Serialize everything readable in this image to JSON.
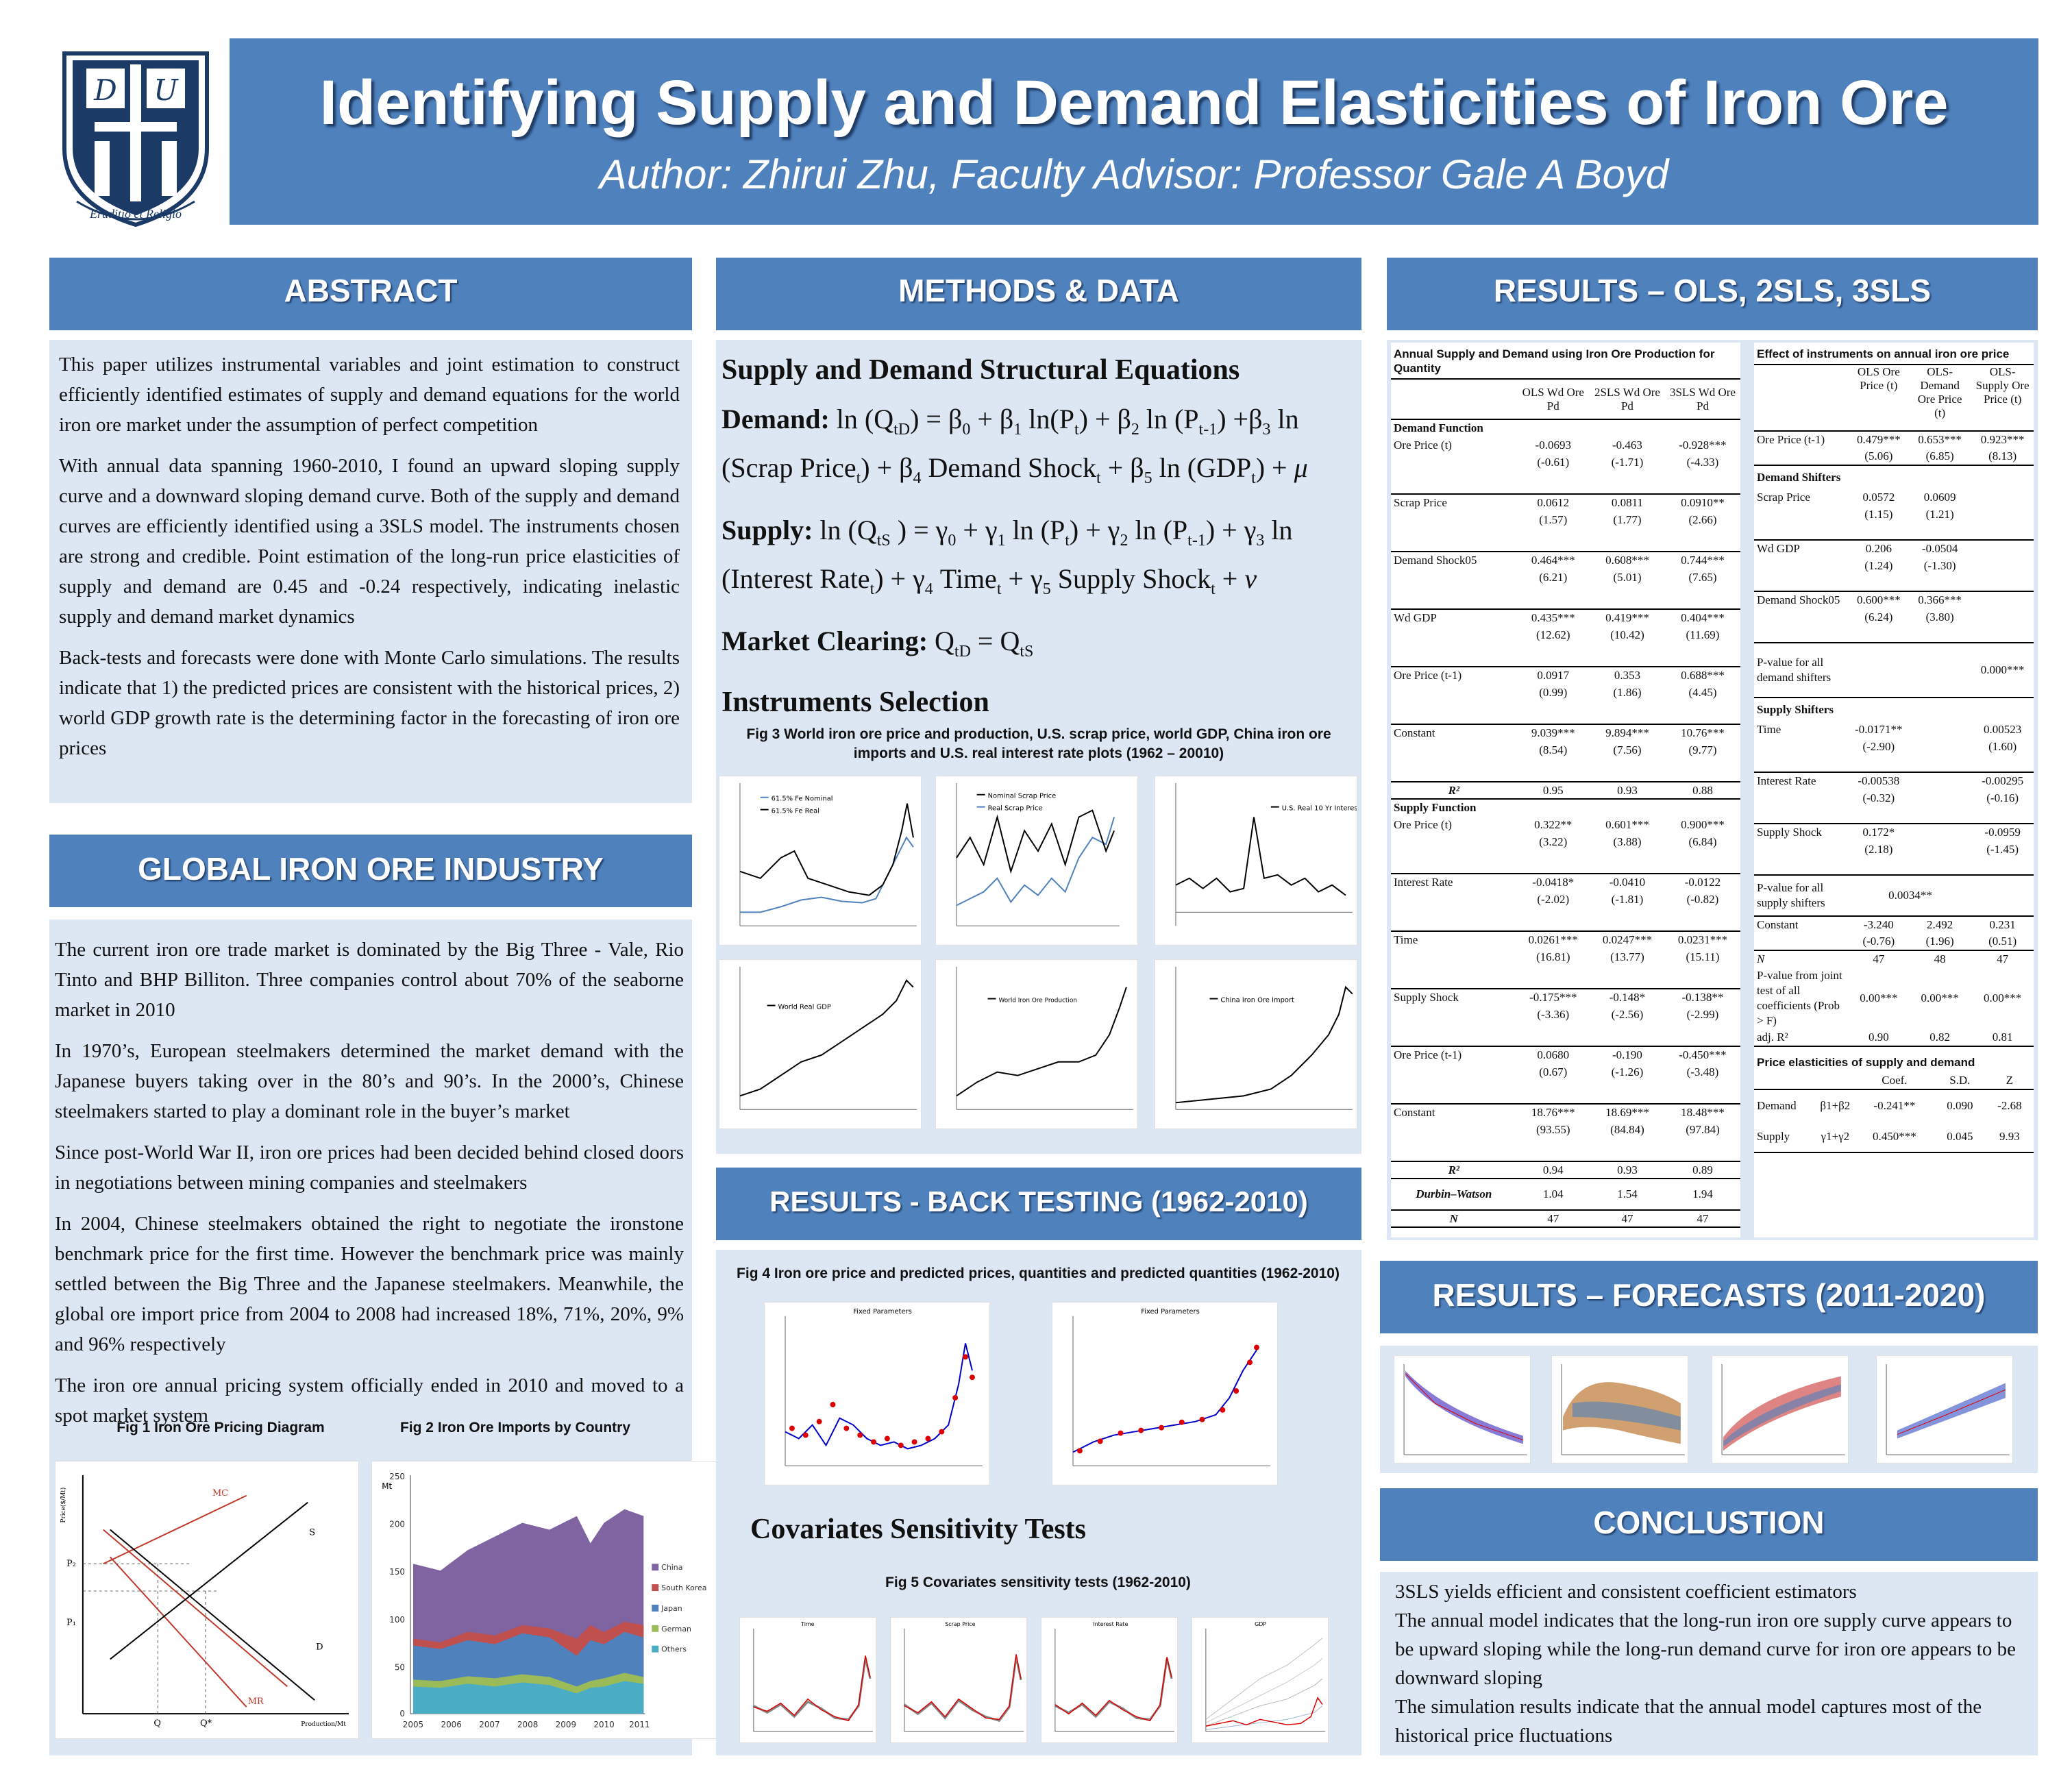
{
  "header": {
    "title": "Identifying Supply and Demand Elasticities of Iron Ore",
    "author": "Author: Zhirui Zhu, Faculty Advisor: Professor Gale A Boyd",
    "logo_motto": "Eruditio et Religio"
  },
  "abstract": {
    "heading": "ABSTRACT",
    "paragraphs": [
      "This paper utilizes instrumental variables and joint estimation to construct efficiently identified estimates of supply and demand equations for the world iron ore market under the assumption of perfect competition",
      "With annual data spanning 1960-2010, I found an upward sloping supply curve and a downward sloping demand curve. Both of the supply and demand curves are efficiently identified using a 3SLS model. The instruments chosen are strong and credible. Point estimation of the long-run price elasticities of supply and demand are 0.45 and -0.24 respectively, indicating inelastic supply and demand market dynamics",
      "Back-tests and forecasts were done with Monte Carlo simulations. The results indicate that 1) the predicted prices are consistent with the historical prices, 2) world GDP growth rate is the determining factor in the forecasting of iron ore prices"
    ]
  },
  "industry": {
    "heading": "GLOBAL IRON ORE INDUSTRY",
    "paragraphs": [
      "The current iron ore trade market is dominated by the Big Three - Vale, Rio Tinto and BHP Billiton. Three companies control about 70% of the seaborne market in 2010",
      "In 1970’s, European steelmakers determined the market demand with the Japanese buyers taking over in the 80’s and 90’s. In the 2000’s, Chinese steelmakers started to play a dominant role in the buyer’s market",
      "Since post-World War II, iron ore prices had been decided behind closed doors in negotiations between mining companies and steelmakers",
      "In 2004, Chinese steelmakers obtained the right to negotiate the ironstone benchmark price for the first time. However the benchmark price was mainly settled between the Big Three and the Japanese steelmakers. Meanwhile, the global ore import price from 2004 to 2008 had increased 18%, 71%, 20%, 9% and 96% respectively",
      "The iron ore annual pricing system officially ended in 2010 and moved to a spot market system"
    ],
    "fig1_caption": "Fig 1 Iron Ore Pricing Diagram",
    "fig2_caption": "Fig 2 Iron Ore Imports by Country",
    "fig1": {
      "mc": "MC",
      "s": "S",
      "d": "D",
      "mr": "MR",
      "p2": "P₂",
      "p1": "P₁",
      "q": "Q",
      "qstar": "Q*",
      "ylabel": "Price($/Mt)",
      "xlabel": "Production/Mt"
    },
    "fig2": {
      "unit": "Mt",
      "legend": [
        "China",
        "South Korea",
        "Japan",
        "German",
        "Others"
      ],
      "yticks": [
        "250",
        "200",
        "150",
        "100",
        "50",
        "0"
      ],
      "xticks": [
        "2005",
        "2006",
        "2007",
        "2008",
        "2009",
        "2010",
        "2011"
      ]
    }
  },
  "methods": {
    "heading": "METHODS & DATA",
    "eq_title": "Supply and Demand Structural Equations",
    "demand_label": "Demand:",
    "supply_label": "Supply:",
    "clearing_label": "Market Clearing:",
    "instruments_title": "Instruments Selection",
    "fig3_caption": "Fig 3 World iron ore price and production, U.S. scrap price, world GDP, China iron ore imports and U.S. real interest rate plots (1962 – 20010)",
    "fig3_legends": [
      "61.5% Fe Nominal",
      "61.5% Fe Real",
      "Nominal Scrap Price",
      "Real Scrap Price",
      "U.S. Real 10 Yr Interest Rate",
      "World Real GDP",
      "World Iron Ore Production",
      "China Iron Ore Import"
    ]
  },
  "backtest": {
    "heading": "RESULTS - BACK TESTING (1962-2010)",
    "fig4_caption": "Fig 4 Iron ore price and predicted prices, quantities and predicted quantities (1962-2010)",
    "plot_title": "Fixed Parameters",
    "sens_title": "Covariates Sensitivity Tests",
    "fig5_caption": "Fig 5 Covariates sensitivity tests (1962-2010)",
    "fig5_titles": [
      "Time",
      "Scrap Price",
      "Interest Rate",
      "GDP"
    ]
  },
  "results": {
    "heading": "RESULTS – OLS, 2SLS, 3SLS",
    "t1": {
      "title": "Annual Supply and Demand using Iron Ore Production for Quantity",
      "cols": [
        "OLS Wd Ore Pd",
        "2SLS Wd Ore Pd",
        "3SLS Wd Ore Pd"
      ],
      "demand_header": "Demand Function",
      "supply_header": "Supply Function",
      "demand_rows": [
        {
          "name": "Ore Price (t)",
          "v": [
            "-0.0693",
            "-0.463",
            "-0.928***"
          ],
          "t": [
            "(-0.61)",
            "(-1.71)",
            "(-4.33)"
          ]
        },
        {
          "name": "Scrap Price",
          "v": [
            "0.0612",
            "0.0811",
            "0.0910**"
          ],
          "t": [
            "(1.57)",
            "(1.77)",
            "(2.66)"
          ]
        },
        {
          "name": "Demand Shock05",
          "v": [
            "0.464***",
            "0.608***",
            "0.744***"
          ],
          "t": [
            "(6.21)",
            "(5.01)",
            "(7.65)"
          ]
        },
        {
          "name": "Wd GDP",
          "v": [
            "0.435***",
            "0.419***",
            "0.404***"
          ],
          "t": [
            "(12.62)",
            "(10.42)",
            "(11.69)"
          ]
        },
        {
          "name": "Ore Price (t-1)",
          "v": [
            "0.0917",
            "0.353",
            "0.688***"
          ],
          "t": [
            "(0.99)",
            "(1.86)",
            "(4.45)"
          ]
        },
        {
          "name": "Constant",
          "v": [
            "9.039***",
            "9.894***",
            "10.76***"
          ],
          "t": [
            "(8.54)",
            "(7.56)",
            "(9.77)"
          ]
        }
      ],
      "demand_r2": {
        "name": "R²",
        "v": [
          "0.95",
          "0.93",
          "0.88"
        ]
      },
      "supply_rows": [
        {
          "name": "Ore Price (t)",
          "v": [
            "0.322**",
            "0.601***",
            "0.900***"
          ],
          "t": [
            "(3.22)",
            "(3.88)",
            "(6.84)"
          ]
        },
        {
          "name": "Interest Rate",
          "v": [
            "-0.0418*",
            "-0.0410",
            "-0.0122"
          ],
          "t": [
            "(-2.02)",
            "(-1.81)",
            "(-0.82)"
          ]
        },
        {
          "name": "Time",
          "v": [
            "0.0261***",
            "0.0247***",
            "0.0231***"
          ],
          "t": [
            "(16.81)",
            "(13.77)",
            "(15.11)"
          ]
        },
        {
          "name": "Supply Shock",
          "v": [
            "-0.175***",
            "-0.148*",
            "-0.138**"
          ],
          "t": [
            "(-3.36)",
            "(-2.56)",
            "(-2.99)"
          ]
        },
        {
          "name": "Ore Price (t-1)",
          "v": [
            "0.0680",
            "-0.190",
            "-0.450***"
          ],
          "t": [
            "(0.67)",
            "(-1.26)",
            "(-3.48)"
          ]
        },
        {
          "name": "Constant",
          "v": [
            "18.76***",
            "18.69***",
            "18.48***"
          ],
          "t": [
            "(93.55)",
            "(84.84)",
            "(97.84)"
          ]
        }
      ],
      "supply_stats": [
        {
          "name": "R²",
          "v": [
            "0.94",
            "0.93",
            "0.89"
          ]
        },
        {
          "name": "Durbin–Watson",
          "v": [
            "1.04",
            "1.54",
            "1.94"
          ]
        },
        {
          "name": "N",
          "v": [
            "47",
            "47",
            "47"
          ]
        }
      ]
    },
    "t2": {
      "title": "Effect of instruments on annual iron ore price",
      "cols": [
        "OLS Ore Price (t)",
        "OLS-Demand Ore Price (t)",
        "OLS-Supply Ore Price (t)"
      ],
      "ore": {
        "name": "Ore Price (t-1)",
        "v": [
          "0.479***",
          "0.653***",
          "0.923***"
        ],
        "t": [
          "(5.06)",
          "(6.85)",
          "(8.13)"
        ]
      },
      "demand_header": "Demand Shifters",
      "demand_rows": [
        {
          "name": "Scrap Price",
          "v": [
            "0.0572",
            "0.0609",
            ""
          ],
          "t": [
            "(1.15)",
            "(1.21)",
            ""
          ]
        },
        {
          "name": "Wd GDP",
          "v": [
            "0.206",
            "-0.0504",
            ""
          ],
          "t": [
            "(1.24)",
            "(-1.30)",
            ""
          ]
        },
        {
          "name": "Demand Shock05",
          "v": [
            "0.600***",
            "0.366***",
            ""
          ],
          "t": [
            "(6.24)",
            "(3.80)",
            ""
          ]
        }
      ],
      "pdemand": {
        "name": "P-value for all demand shifters",
        "v": "0.000***"
      },
      "supply_header": "Supply Shifters",
      "supply_rows": [
        {
          "name": "Time",
          "v": [
            "-0.0171**",
            "",
            "0.00523"
          ],
          "t": [
            "(-2.90)",
            "",
            "(1.60)"
          ]
        },
        {
          "name": "Interest Rate",
          "v": [
            "-0.00538",
            "",
            "-0.00295"
          ],
          "t": [
            "(-0.32)",
            "",
            "(-0.16)"
          ]
        },
        {
          "name": "Supply Shock",
          "v": [
            "0.172*",
            "",
            "-0.0959"
          ],
          "t": [
            "(2.18)",
            "",
            "(-1.45)"
          ]
        }
      ],
      "psupply": {
        "name": "P-value for all supply shifters",
        "v": "0.0034**"
      },
      "constant": {
        "name": "Constant",
        "v": [
          "-3.240",
          "2.492",
          "0.231"
        ],
        "t": [
          "(-0.76)",
          "(1.96)",
          "(0.51)"
        ]
      },
      "n": {
        "name": "N",
        "v": [
          "47",
          "48",
          "47"
        ]
      },
      "pjoint": {
        "name": "P-value from joint test of all coefficients (Prob > F)",
        "v": [
          "0.00***",
          "0.00***",
          "0.00***"
        ]
      },
      "adjr2": {
        "name": "adj. R²",
        "v": [
          "0.90",
          "0.82",
          "0.81"
        ]
      }
    },
    "t3": {
      "title": "Price elasticities of supply and demand",
      "cols": [
        "Coef.",
        "S.D.",
        "Z"
      ],
      "rows": [
        {
          "name": "Demand",
          "sym": "β1+β2",
          "v": [
            "-0.241**",
            "0.090",
            "-2.68"
          ]
        },
        {
          "name": "Supply",
          "sym": "γ1+γ2",
          "v": [
            "0.450***",
            "0.045",
            "9.93"
          ]
        }
      ]
    }
  },
  "forecasts": {
    "heading": "RESULTS – FORECASTS (2011-2020)"
  },
  "conclusion": {
    "heading": "CONCLUSTION",
    "paragraphs": [
      "3SLS yields efficient and consistent coefficient estimators",
      "The annual model indicates that the long-run iron ore supply curve appears to be upward sloping while the long-run demand curve for iron ore appears to be downward sloping",
      "The simulation results indicate that the annual model captures most of the historical price fluctuations"
    ]
  },
  "colors": {
    "accent": "#4f81bd",
    "panel": "#dde7f3",
    "navy": "#1b3a66"
  }
}
